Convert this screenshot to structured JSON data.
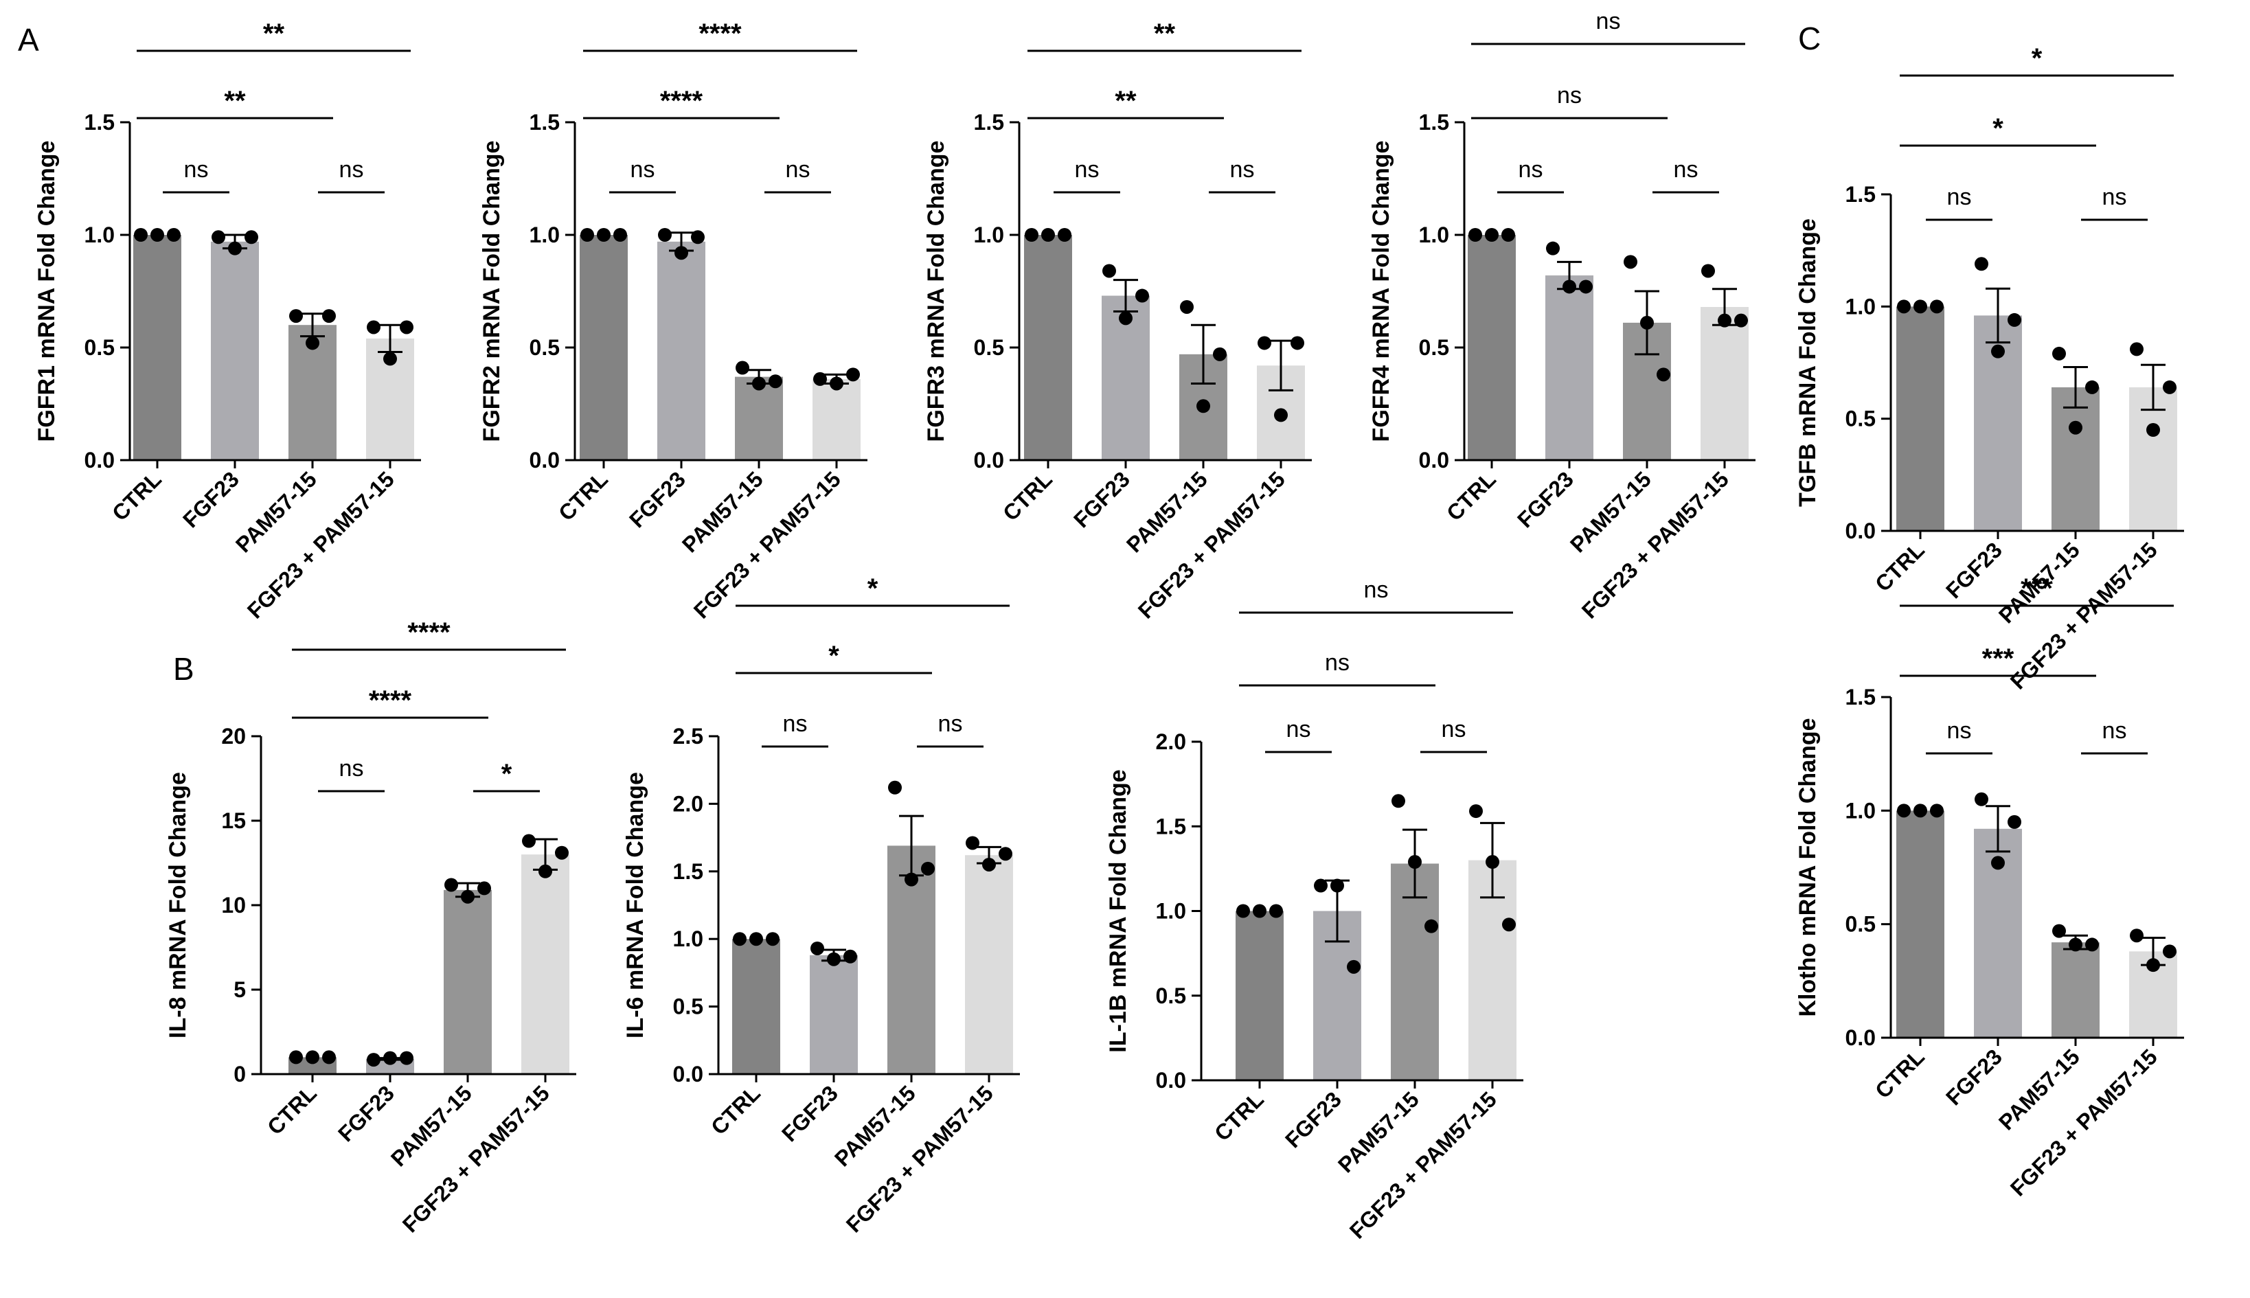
{
  "panel_labels": {
    "A": "A",
    "B": "B",
    "C": "C"
  },
  "colors": [
    "#838383",
    "#ababb0",
    "#959595",
    "#dcdcdc"
  ],
  "chart_data": [
    {
      "id": "fgfr1",
      "panel": "A",
      "type": "bar",
      "ylabel": "FGFR1 mRNA Fold Change",
      "categories": [
        "CTRL",
        "FGF23",
        "PAM57-15",
        "FGF23 + PAM57-15"
      ],
      "values": [
        1.0,
        0.97,
        0.6,
        0.54
      ],
      "sem": [
        0.0,
        0.03,
        0.05,
        0.06
      ],
      "points": [
        [
          1.0,
          1.0,
          1.0
        ],
        [
          0.99,
          0.94,
          0.99
        ],
        [
          0.64,
          0.52,
          0.64
        ],
        [
          0.59,
          0.45,
          0.59
        ]
      ],
      "ylim": [
        0,
        1.5
      ],
      "yticks": [
        0.0,
        0.5,
        1.0,
        1.5
      ],
      "tick_labels": [
        "0.0",
        "0.5",
        "1.0",
        "1.5"
      ],
      "comparisons": [
        {
          "from": 0,
          "to": 3,
          "label": "**"
        },
        {
          "from": 0,
          "to": 2,
          "label": "**"
        },
        {
          "from": 0,
          "to": 1,
          "label": "ns"
        },
        {
          "from": 2,
          "to": 3,
          "label": "ns"
        }
      ]
    },
    {
      "id": "fgfr2",
      "panel": "A",
      "type": "bar",
      "ylabel": "FGFR2 mRNA Fold Change",
      "categories": [
        "CTRL",
        "FGF23",
        "PAM57-15",
        "FGF23 + PAM57-15"
      ],
      "values": [
        1.0,
        0.97,
        0.37,
        0.36
      ],
      "sem": [
        0.0,
        0.04,
        0.03,
        0.02
      ],
      "points": [
        [
          1.0,
          1.0,
          1.0
        ],
        [
          1.0,
          0.92,
          0.99
        ],
        [
          0.41,
          0.34,
          0.35
        ],
        [
          0.36,
          0.34,
          0.38
        ]
      ],
      "ylim": [
        0,
        1.5
      ],
      "yticks": [
        0.0,
        0.5,
        1.0,
        1.5
      ],
      "tick_labels": [
        "0.0",
        "0.5",
        "1.0",
        "1.5"
      ],
      "comparisons": [
        {
          "from": 0,
          "to": 3,
          "label": "****"
        },
        {
          "from": 0,
          "to": 2,
          "label": "****"
        },
        {
          "from": 0,
          "to": 1,
          "label": "ns"
        },
        {
          "from": 2,
          "to": 3,
          "label": "ns"
        }
      ]
    },
    {
      "id": "fgfr3",
      "panel": "A",
      "type": "bar",
      "ylabel": "FGFR3 mRNA Fold Change",
      "categories": [
        "CTRL",
        "FGF23",
        "PAM57-15",
        "FGF23 + PAM57-15"
      ],
      "values": [
        1.0,
        0.73,
        0.47,
        0.42
      ],
      "sem": [
        0.0,
        0.07,
        0.13,
        0.11
      ],
      "points": [
        [
          1.0,
          1.0,
          1.0
        ],
        [
          0.84,
          0.63,
          0.73
        ],
        [
          0.68,
          0.24,
          0.47
        ],
        [
          0.52,
          0.2,
          0.52
        ]
      ],
      "ylim": [
        0,
        1.5
      ],
      "yticks": [
        0.0,
        0.5,
        1.0,
        1.5
      ],
      "tick_labels": [
        "0.0",
        "0.5",
        "1.0",
        "1.5"
      ],
      "comparisons": [
        {
          "from": 0,
          "to": 3,
          "label": "**"
        },
        {
          "from": 0,
          "to": 2,
          "label": "**"
        },
        {
          "from": 0,
          "to": 1,
          "label": "ns"
        },
        {
          "from": 2,
          "to": 3,
          "label": "ns"
        }
      ]
    },
    {
      "id": "fgfr4",
      "panel": "A",
      "type": "bar",
      "ylabel": "FGFR4 mRNA Fold Change",
      "categories": [
        "CTRL",
        "FGF23",
        "PAM57-15",
        "FGF23 + PAM57-15"
      ],
      "values": [
        1.0,
        0.82,
        0.61,
        0.68
      ],
      "sem": [
        0.0,
        0.06,
        0.14,
        0.08
      ],
      "points": [
        [
          1.0,
          1.0,
          1.0
        ],
        [
          0.94,
          0.77,
          0.77
        ],
        [
          0.88,
          0.61,
          0.38
        ],
        [
          0.84,
          0.62,
          0.62
        ]
      ],
      "ylim": [
        0,
        1.5
      ],
      "yticks": [
        0.0,
        0.5,
        1.0,
        1.5
      ],
      "tick_labels": [
        "0.0",
        "0.5",
        "1.0",
        "1.5"
      ],
      "comparisons": [
        {
          "from": 0,
          "to": 3,
          "label": "ns"
        },
        {
          "from": 0,
          "to": 2,
          "label": "ns"
        },
        {
          "from": 0,
          "to": 1,
          "label": "ns"
        },
        {
          "from": 2,
          "to": 3,
          "label": "ns"
        }
      ]
    },
    {
      "id": "tgfb",
      "panel": "C",
      "type": "bar",
      "ylabel": "TGFB mRNA Fold Change",
      "categories": [
        "CTRL",
        "FGF23",
        "PAM57-15",
        "FGF23 + PAM57-15"
      ],
      "values": [
        1.0,
        0.96,
        0.64,
        0.64
      ],
      "sem": [
        0.0,
        0.12,
        0.09,
        0.1
      ],
      "points": [
        [
          1.0,
          1.0,
          1.0
        ],
        [
          1.19,
          0.8,
          0.94
        ],
        [
          0.79,
          0.46,
          0.64
        ],
        [
          0.81,
          0.45,
          0.64
        ]
      ],
      "ylim": [
        0,
        1.5
      ],
      "yticks": [
        0.0,
        0.5,
        1.0,
        1.5
      ],
      "tick_labels": [
        "0.0",
        "0.5",
        "1.0",
        "1.5"
      ],
      "comparisons": [
        {
          "from": 0,
          "to": 3,
          "label": "*"
        },
        {
          "from": 0,
          "to": 2,
          "label": "*"
        },
        {
          "from": 0,
          "to": 1,
          "label": "ns"
        },
        {
          "from": 2,
          "to": 3,
          "label": "ns"
        }
      ]
    },
    {
      "id": "il8",
      "panel": "B",
      "type": "bar",
      "ylabel": "IL-8 mRNA Fold Change",
      "categories": [
        "CTRL",
        "FGF23",
        "PAM57-15",
        "FGF23 + PAM57-15"
      ],
      "values": [
        1.0,
        0.9,
        10.9,
        13.0
      ],
      "sem": [
        0.0,
        0.05,
        0.4,
        0.9
      ],
      "points": [
        [
          1.0,
          1.0,
          1.0
        ],
        [
          0.85,
          0.95,
          0.95
        ],
        [
          11.2,
          10.5,
          11.0
        ],
        [
          13.8,
          12.0,
          13.1
        ]
      ],
      "ylim": [
        0,
        20
      ],
      "yticks": [
        0,
        5,
        10,
        15,
        20
      ],
      "tick_labels": [
        "0",
        "5",
        "10",
        "15",
        "20"
      ],
      "comparisons": [
        {
          "from": 0,
          "to": 3,
          "label": "****"
        },
        {
          "from": 0,
          "to": 2,
          "label": "****"
        },
        {
          "from": 0,
          "to": 1,
          "label": "ns"
        },
        {
          "from": 2,
          "to": 3,
          "label": "*"
        }
      ]
    },
    {
      "id": "il6",
      "panel": "B",
      "type": "bar",
      "ylabel": "IL-6 mRNA Fold Change",
      "categories": [
        "CTRL",
        "FGF23",
        "PAM57-15",
        "FGF23 + PAM57-15"
      ],
      "values": [
        1.0,
        0.88,
        1.69,
        1.62
      ],
      "sem": [
        0.0,
        0.04,
        0.22,
        0.06
      ],
      "points": [
        [
          1.0,
          1.0,
          1.0
        ],
        [
          0.93,
          0.85,
          0.87
        ],
        [
          2.12,
          1.44,
          1.52
        ],
        [
          1.71,
          1.55,
          1.63
        ]
      ],
      "ylim": [
        0,
        2.5
      ],
      "yticks": [
        0.0,
        0.5,
        1.0,
        1.5,
        2.0,
        2.5
      ],
      "tick_labels": [
        "0.0",
        "0.5",
        "1.0",
        "1.5",
        "2.0",
        "2.5"
      ],
      "comparisons": [
        {
          "from": 0,
          "to": 3,
          "label": "*"
        },
        {
          "from": 0,
          "to": 2,
          "label": "*"
        },
        {
          "from": 0,
          "to": 1,
          "label": "ns"
        },
        {
          "from": 2,
          "to": 3,
          "label": "ns"
        }
      ]
    },
    {
      "id": "il1b",
      "panel": "B",
      "type": "bar",
      "ylabel": "IL-1B mRNA Fold Change",
      "categories": [
        "CTRL",
        "FGF23",
        "PAM57-15",
        "FGF23 + PAM57-15"
      ],
      "values": [
        1.0,
        1.0,
        1.28,
        1.3
      ],
      "sem": [
        0.0,
        0.18,
        0.2,
        0.22
      ],
      "points": [
        [
          1.0,
          1.0,
          1.0
        ],
        [
          1.15,
          1.15,
          0.67
        ],
        [
          1.65,
          1.29,
          0.91
        ],
        [
          1.59,
          1.29,
          0.92
        ]
      ],
      "ylim": [
        0,
        2.0
      ],
      "yticks": [
        0.0,
        0.5,
        1.0,
        1.5,
        2.0
      ],
      "tick_labels": [
        "0.0",
        "0.5",
        "1.0",
        "1.5",
        "2.0"
      ],
      "comparisons": [
        {
          "from": 0,
          "to": 3,
          "label": "ns"
        },
        {
          "from": 0,
          "to": 2,
          "label": "ns"
        },
        {
          "from": 0,
          "to": 1,
          "label": "ns"
        },
        {
          "from": 2,
          "to": 3,
          "label": "ns"
        }
      ]
    },
    {
      "id": "klotho",
      "panel": "C",
      "type": "bar",
      "ylabel": "Klotho mRNA Fold Change",
      "categories": [
        "CTRL",
        "FGF23",
        "PAM57-15",
        "FGF23 + PAM57-15"
      ],
      "values": [
        1.0,
        0.92,
        0.42,
        0.38
      ],
      "sem": [
        0.0,
        0.1,
        0.03,
        0.06
      ],
      "points": [
        [
          1.0,
          1.0,
          1.0
        ],
        [
          1.05,
          0.77,
          0.95
        ],
        [
          0.47,
          0.41,
          0.41
        ],
        [
          0.45,
          0.32,
          0.38
        ]
      ],
      "ylim": [
        0,
        1.5
      ],
      "yticks": [
        0.0,
        0.5,
        1.0,
        1.5
      ],
      "tick_labels": [
        "0.0",
        "0.5",
        "1.0",
        "1.5"
      ],
      "comparisons": [
        {
          "from": 0,
          "to": 3,
          "label": "***"
        },
        {
          "from": 0,
          "to": 2,
          "label": "***"
        },
        {
          "from": 0,
          "to": 1,
          "label": "ns"
        },
        {
          "from": 2,
          "to": 3,
          "label": "ns"
        }
      ]
    }
  ]
}
